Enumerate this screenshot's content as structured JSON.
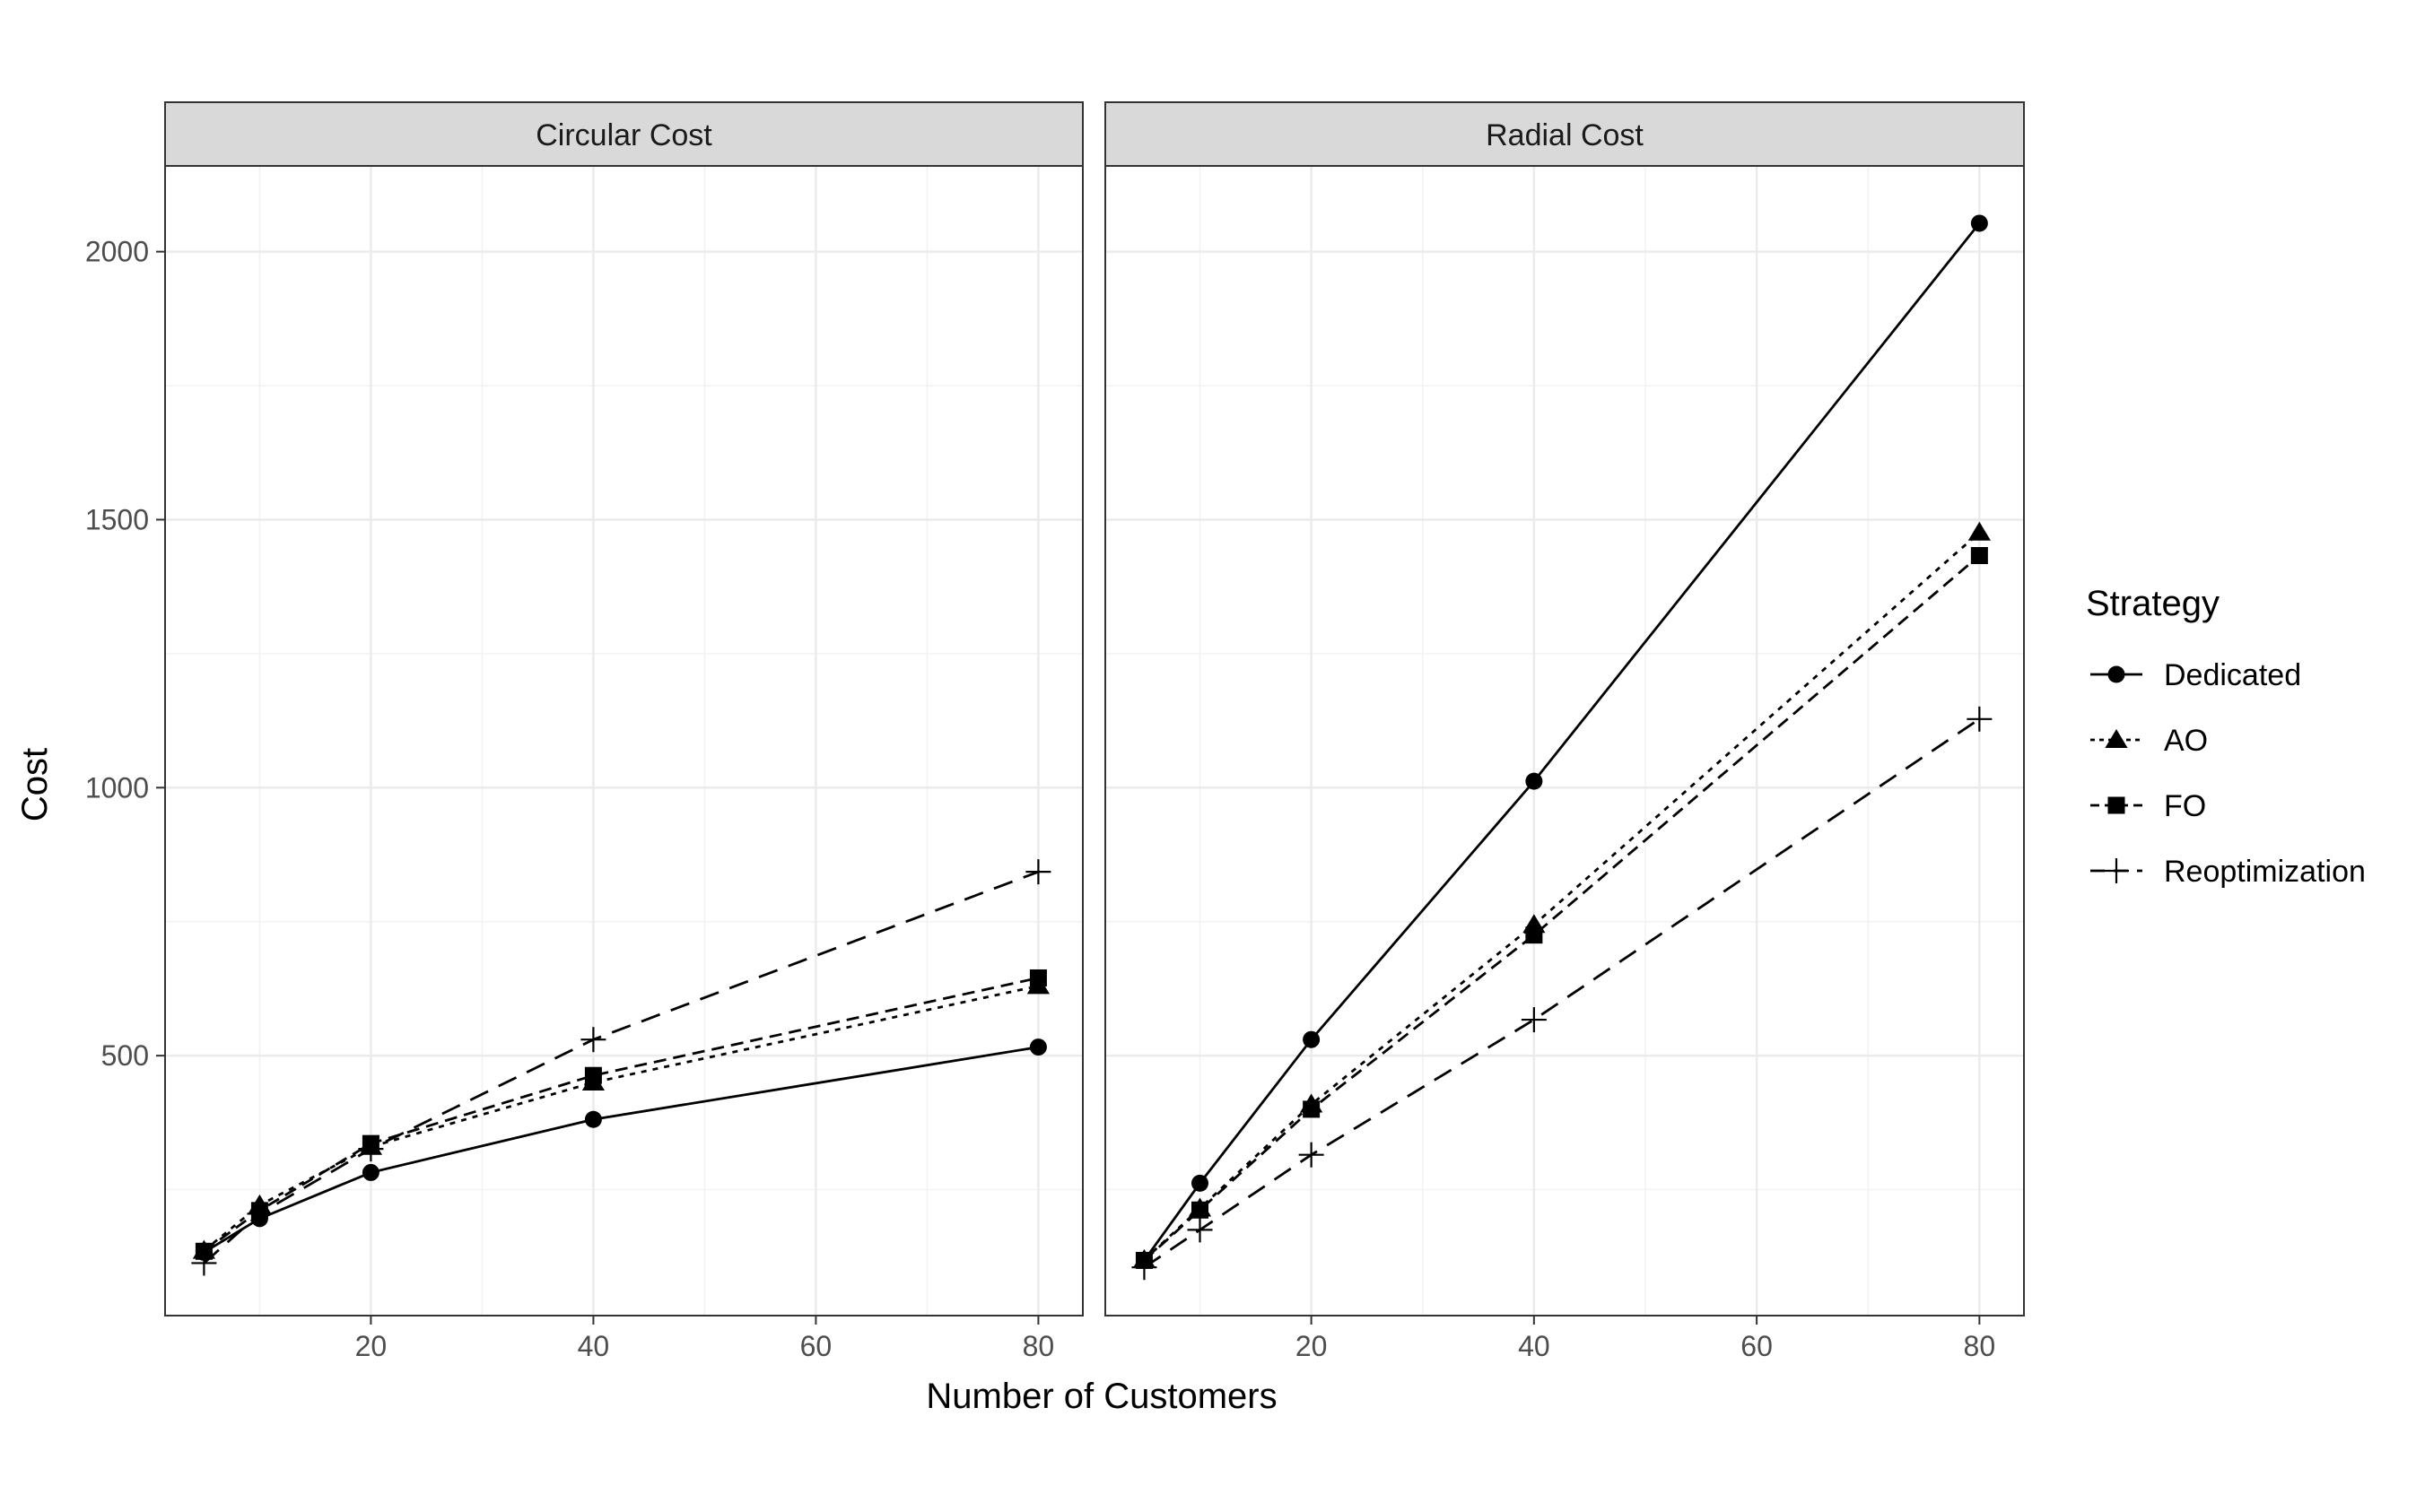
{
  "chart_data": {
    "type": "line",
    "facet_labels": [
      "Circular Cost",
      "Radial Cost"
    ],
    "xlabel": "Number of Customers",
    "ylabel": "Cost",
    "x_ticks": [
      20,
      40,
      60,
      80
    ],
    "y_ticks": [
      500,
      1000,
      1500,
      2000
    ],
    "xlim": [
      1.5,
      84
    ],
    "ylim": [
      15,
      2160
    ],
    "grid": true,
    "legend": {
      "title": "Strategy",
      "position": "right",
      "entries": [
        "Dedicated",
        "AO",
        "FO",
        "Reoptimization"
      ]
    },
    "series_style": [
      {
        "name": "Dedicated",
        "shape": "circle",
        "dash": "solid"
      },
      {
        "name": "AO",
        "shape": "triangle",
        "dash": "dotted"
      },
      {
        "name": "FO",
        "shape": "square",
        "dash": "dashed-short"
      },
      {
        "name": "Reoptimization",
        "shape": "plus",
        "dash": "dashed-long"
      }
    ],
    "x": [
      5,
      10,
      20,
      40,
      80
    ],
    "panels": [
      {
        "title": "Circular Cost",
        "series": [
          {
            "name": "Dedicated",
            "values": [
              133,
              196,
              282,
              381,
              516
            ]
          },
          {
            "name": "AO",
            "values": [
              136,
              221,
              330,
              450,
              630
            ]
          },
          {
            "name": "FO",
            "values": [
              135,
              211,
              336,
              463,
              645
            ]
          },
          {
            "name": "Reoptimization",
            "values": [
              113,
              205,
              326,
              530,
              843
            ]
          }
        ]
      },
      {
        "title": "Radial Cost",
        "series": [
          {
            "name": "Dedicated",
            "values": [
              118,
              262,
              530,
              1012,
              2053
            ]
          },
          {
            "name": "AO",
            "values": [
              119,
              215,
              409,
              744,
              1476
            ]
          },
          {
            "name": "FO",
            "values": [
              118,
              212,
              400,
              725,
              1433
            ]
          },
          {
            "name": "Reoptimization",
            "values": [
              105,
              175,
              315,
              567,
              1128
            ]
          }
        ]
      }
    ]
  }
}
